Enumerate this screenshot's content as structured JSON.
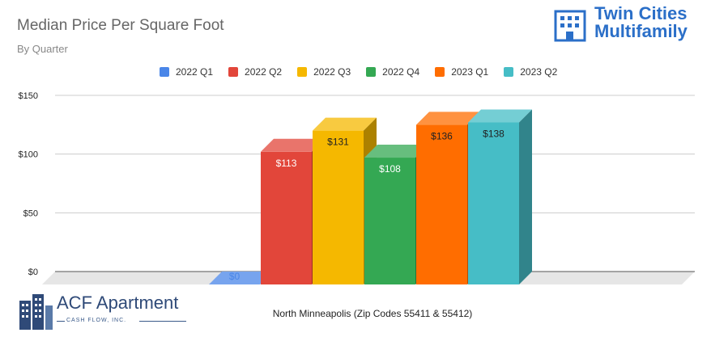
{
  "header": {
    "title": "Median Price Per Square Foot",
    "subtitle": "By Quarter",
    "brand_line1": "Twin Cities",
    "brand_line2": "Multifamily"
  },
  "footer": {
    "logo_name": "ACF Apartment",
    "logo_sub": "CASH FLOW, INC."
  },
  "chart_data": {
    "type": "bar",
    "title": "Median Price Per Square Foot",
    "subtitle": "By Quarter",
    "categories": [
      "North Minneapolis (Zip Codes 55411 & 55412)"
    ],
    "series": [
      {
        "name": "2022 Q1",
        "values": [
          0
        ],
        "label": "$0",
        "color": "#4a86e8"
      },
      {
        "name": "2022 Q2",
        "values": [
          113
        ],
        "label": "$113",
        "color": "#e2463a"
      },
      {
        "name": "2022 Q3",
        "values": [
          131
        ],
        "label": "$131",
        "color": "#f5b800"
      },
      {
        "name": "2022 Q4",
        "values": [
          108
        ],
        "label": "$108",
        "color": "#34a853"
      },
      {
        "name": "2023 Q1",
        "values": [
          136
        ],
        "label": "$136",
        "color": "#ff6d00"
      },
      {
        "name": "2023 Q2",
        "values": [
          138
        ],
        "label": "$138",
        "color": "#46bdc6"
      }
    ],
    "y_ticks": [
      "$0",
      "$50",
      "$100",
      "$150"
    ],
    "y_tick_values": [
      0,
      50,
      100,
      150
    ],
    "ylim": [
      0,
      150
    ],
    "grid": true,
    "legend_position": "top",
    "style": "3d"
  }
}
